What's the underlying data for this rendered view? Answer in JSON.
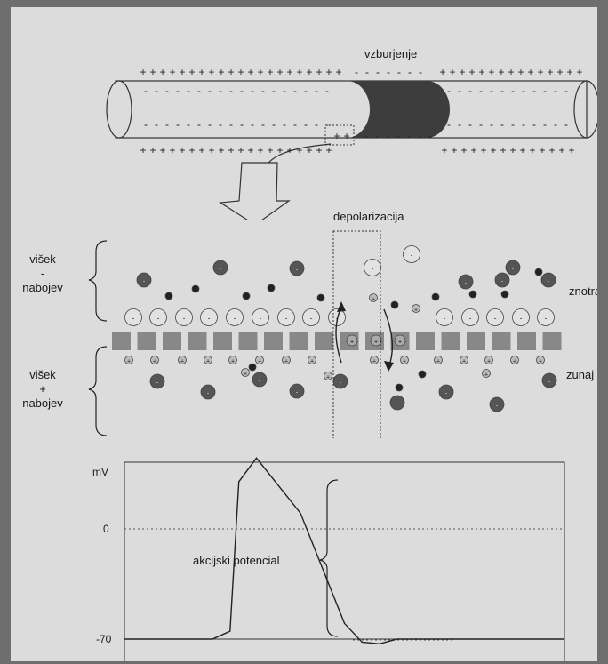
{
  "labels": {
    "vzburjenje": "vzburjenje",
    "depolarizacija": "depolarizacija",
    "visek_minus": [
      "višek",
      "-",
      "nabojev"
    ],
    "visek_plus": [
      "višek",
      "+",
      "nabojev"
    ],
    "znotraj": "znotraj",
    "zunaj": "zunaj",
    "akcijski_potencial": "akcijski potencial"
  },
  "graph": {
    "ylabel": "mV",
    "ticks": [
      "0",
      "-70"
    ]
  },
  "chart_data": {
    "type": "line",
    "ylabel": "mV",
    "reference_lines": [
      0,
      -70
    ],
    "series": [
      {
        "points": [
          [
            0,
            -70
          ],
          [
            20,
            -70
          ],
          [
            24,
            -65
          ],
          [
            26,
            30
          ],
          [
            30,
            45
          ],
          [
            40,
            10
          ],
          [
            50,
            -60
          ],
          [
            54,
            -72
          ],
          [
            58,
            -73
          ],
          [
            62,
            -70
          ],
          [
            100,
            -70
          ]
        ]
      }
    ]
  },
  "colors": {
    "paper": "#dcdcdc",
    "ink": "#222222",
    "shade": "#3f3f3f",
    "gray_block": "#888888"
  }
}
